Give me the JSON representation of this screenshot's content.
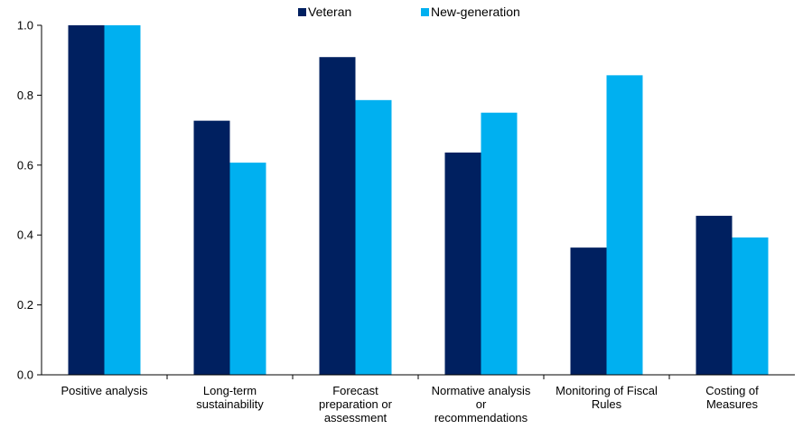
{
  "chart_data": {
    "type": "bar",
    "title": "",
    "xlabel": "",
    "ylabel": "",
    "ylim": [
      0,
      1.0
    ],
    "yticks": [
      "0.0",
      "0.2",
      "0.4",
      "0.6",
      "0.8",
      "1.0"
    ],
    "ytick_values": [
      0,
      0.2,
      0.4,
      0.6,
      0.8,
      1.0
    ],
    "grid": false,
    "legend_position": "top-center",
    "categories": [
      [
        "Positive analysis"
      ],
      [
        "Long-term",
        "sustainability"
      ],
      [
        "Forecast",
        "preparation or",
        "assessment"
      ],
      [
        "Normative analysis",
        "or",
        "recommendations"
      ],
      [
        "Monitoring of Fiscal",
        "Rules"
      ],
      [
        "Costing of",
        "Measures"
      ]
    ],
    "series": [
      {
        "name": "Veteran",
        "color": "#002060",
        "values": [
          1.0,
          0.727,
          0.909,
          0.636,
          0.364,
          0.455
        ]
      },
      {
        "name": "New-generation",
        "color": "#00B0F0",
        "values": [
          1.0,
          0.607,
          0.786,
          0.75,
          0.857,
          0.393
        ]
      }
    ]
  }
}
